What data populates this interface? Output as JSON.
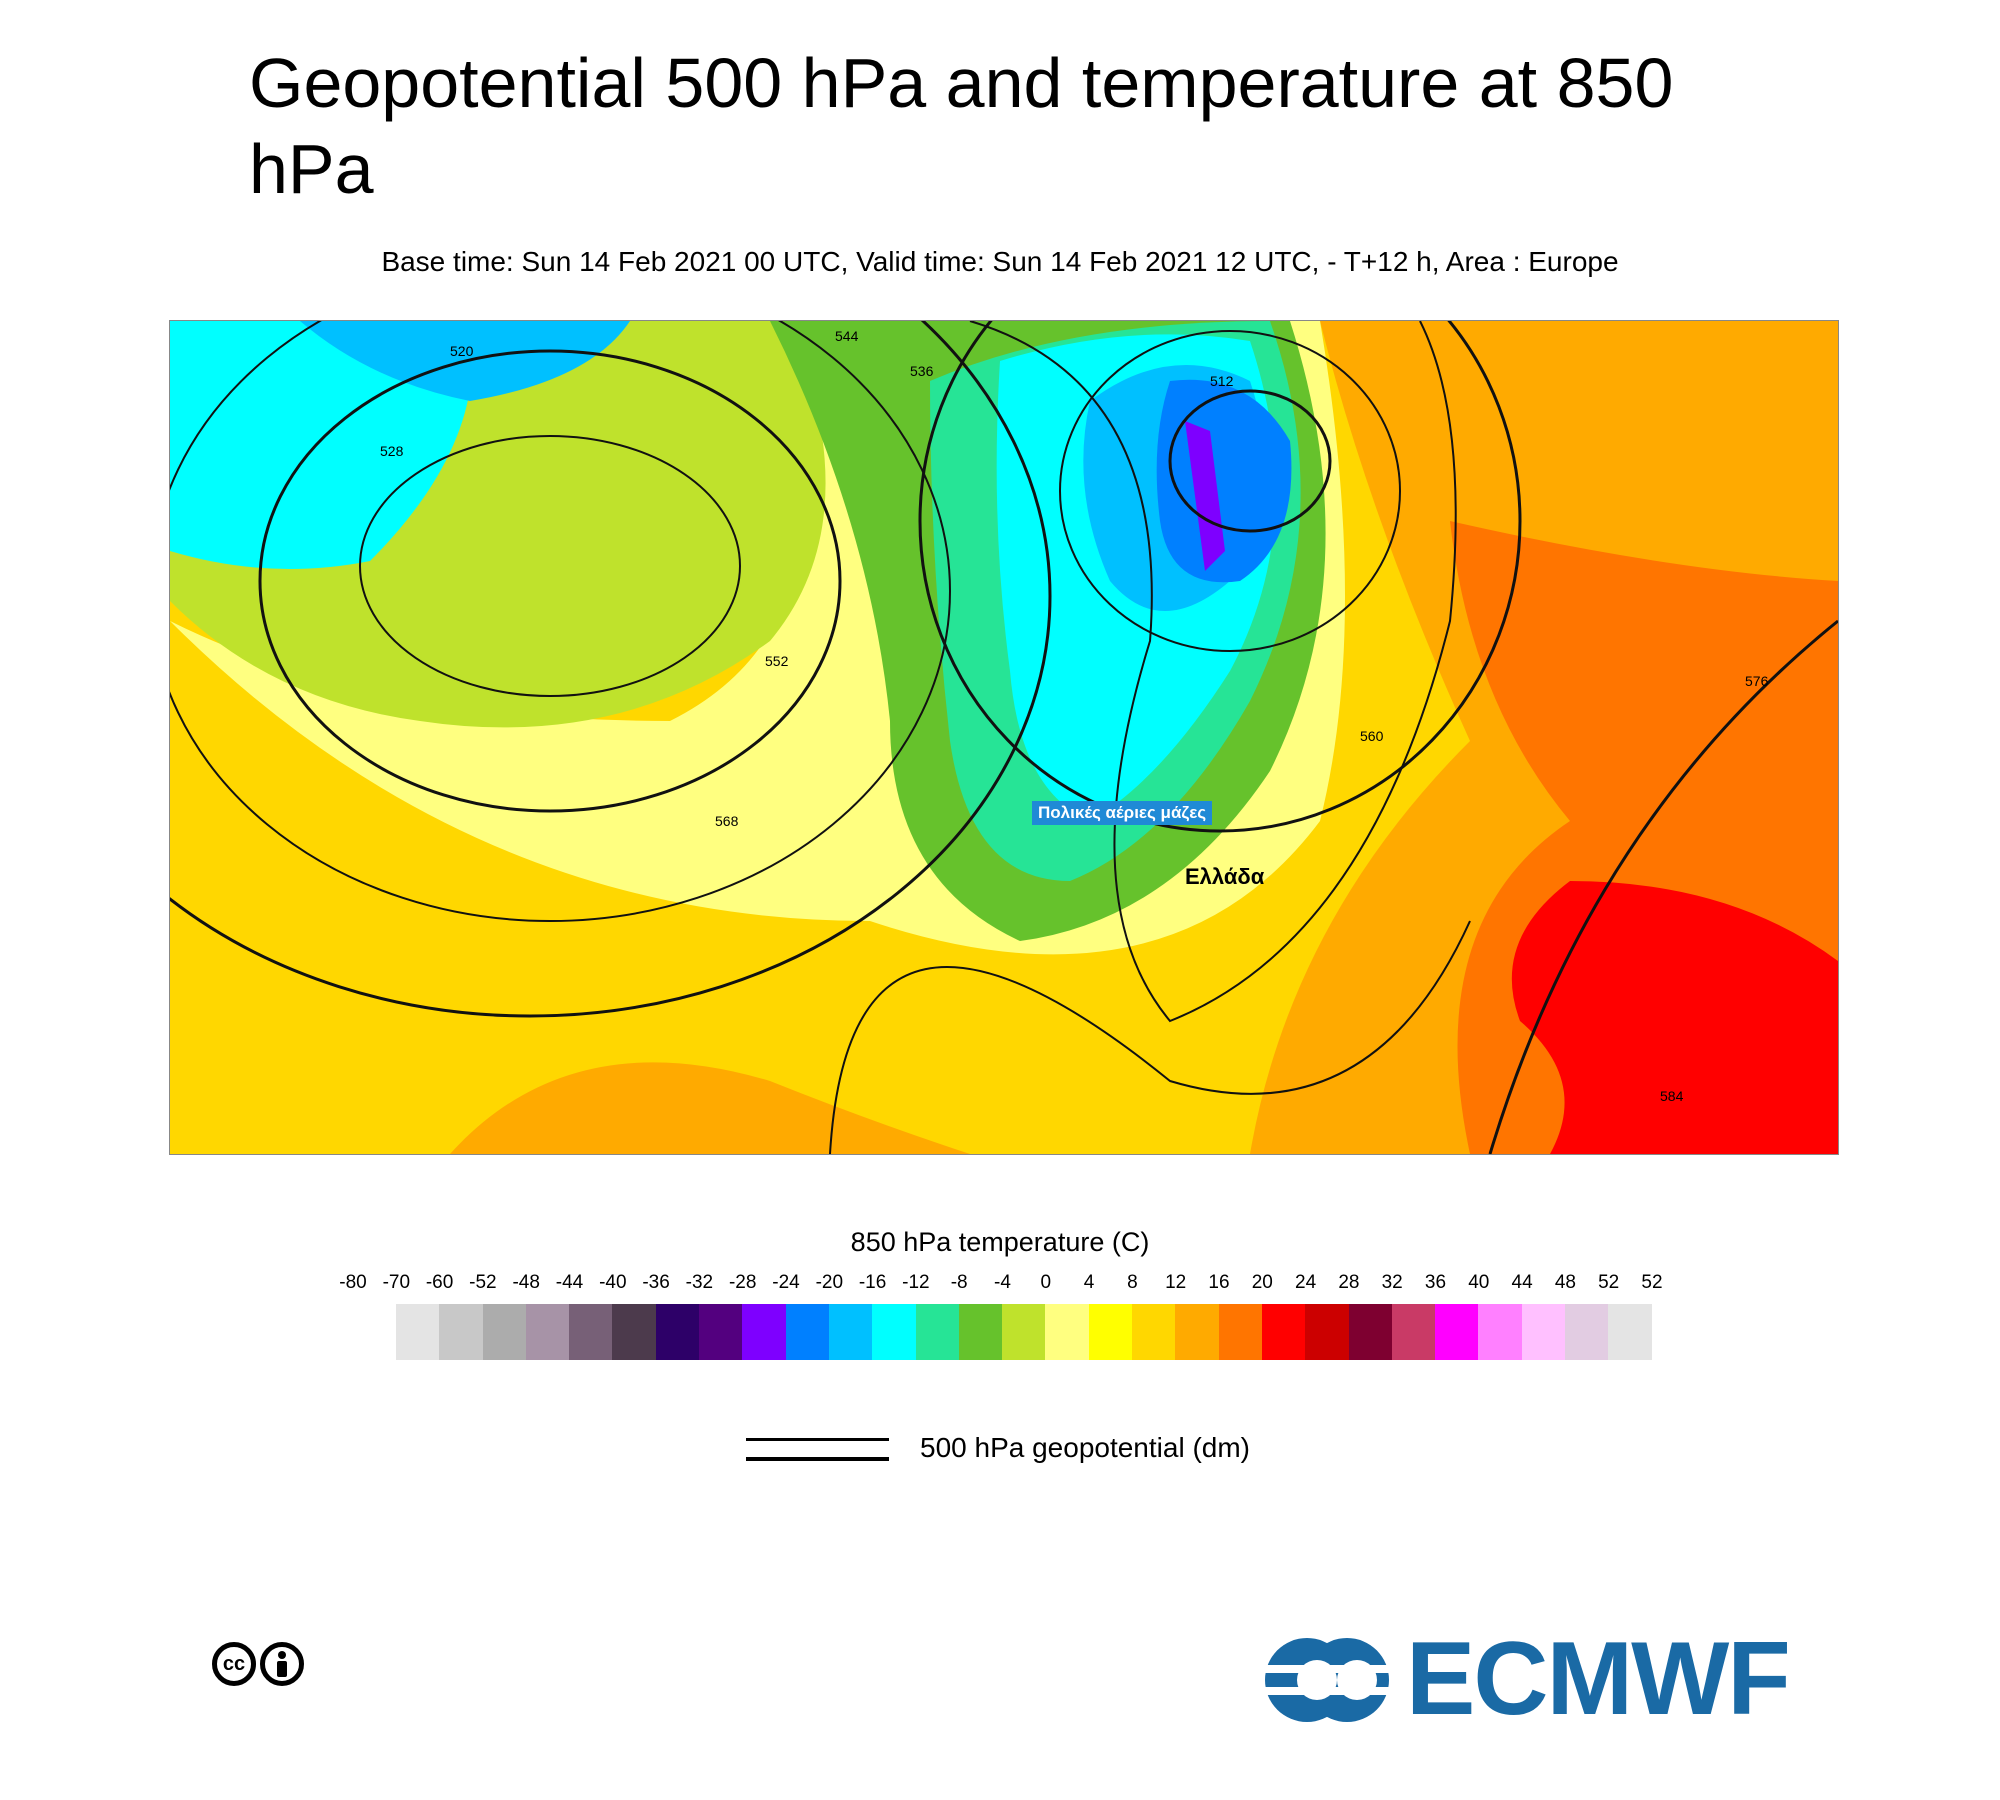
{
  "title": "Geopotential 500 hPa and temperature at 850 hPa",
  "subtitle": "Base time: Sun 14 Feb 2021 00 UTC, Valid time: Sun 14 Feb 2021 12 UTC, - T+12 h, Area : Europe",
  "map": {
    "annotations": {
      "polar_air": "Πολικές αέριες μάζες",
      "greece": "Ελλάδα"
    },
    "contour_labels": [
      "520",
      "528",
      "536",
      "544",
      "552",
      "560",
      "568",
      "576",
      "584",
      "512"
    ]
  },
  "legend": {
    "temperature_title": "850 hPa temperature (C)",
    "ticks": [
      "-80",
      "-70",
      "-60",
      "-52",
      "-48",
      "-44",
      "-40",
      "-36",
      "-32",
      "-28",
      "-24",
      "-20",
      "-16",
      "-12",
      "-8",
      "-4",
      "0",
      "4",
      "8",
      "12",
      "16",
      "20",
      "24",
      "28",
      "32",
      "36",
      "40",
      "44",
      "48",
      "52",
      "52"
    ],
    "colors": [
      "#e4e4e4",
      "#c8c8c8",
      "#acacac",
      "#a793a7",
      "#776077",
      "#4c3a4c",
      "#2d0068",
      "#53007f",
      "#7e00ff",
      "#0080ff",
      "#00c0ff",
      "#00ffff",
      "#26e496",
      "#66c22c",
      "#bfe22c",
      "#ffff80",
      "#ffff00",
      "#ffd700",
      "#ffaa00",
      "#ff7500",
      "#ff0000",
      "#cc0000",
      "#7e0030",
      "#c93a66",
      "#ff00ff",
      "#ff80ff",
      "#ffc0ff",
      "#e2cce2",
      "#e4e4e4"
    ],
    "geopotential_label": "500 hPa geopotential (dm)"
  },
  "logo": {
    "text": "ECMWF",
    "cc": "cc"
  }
}
